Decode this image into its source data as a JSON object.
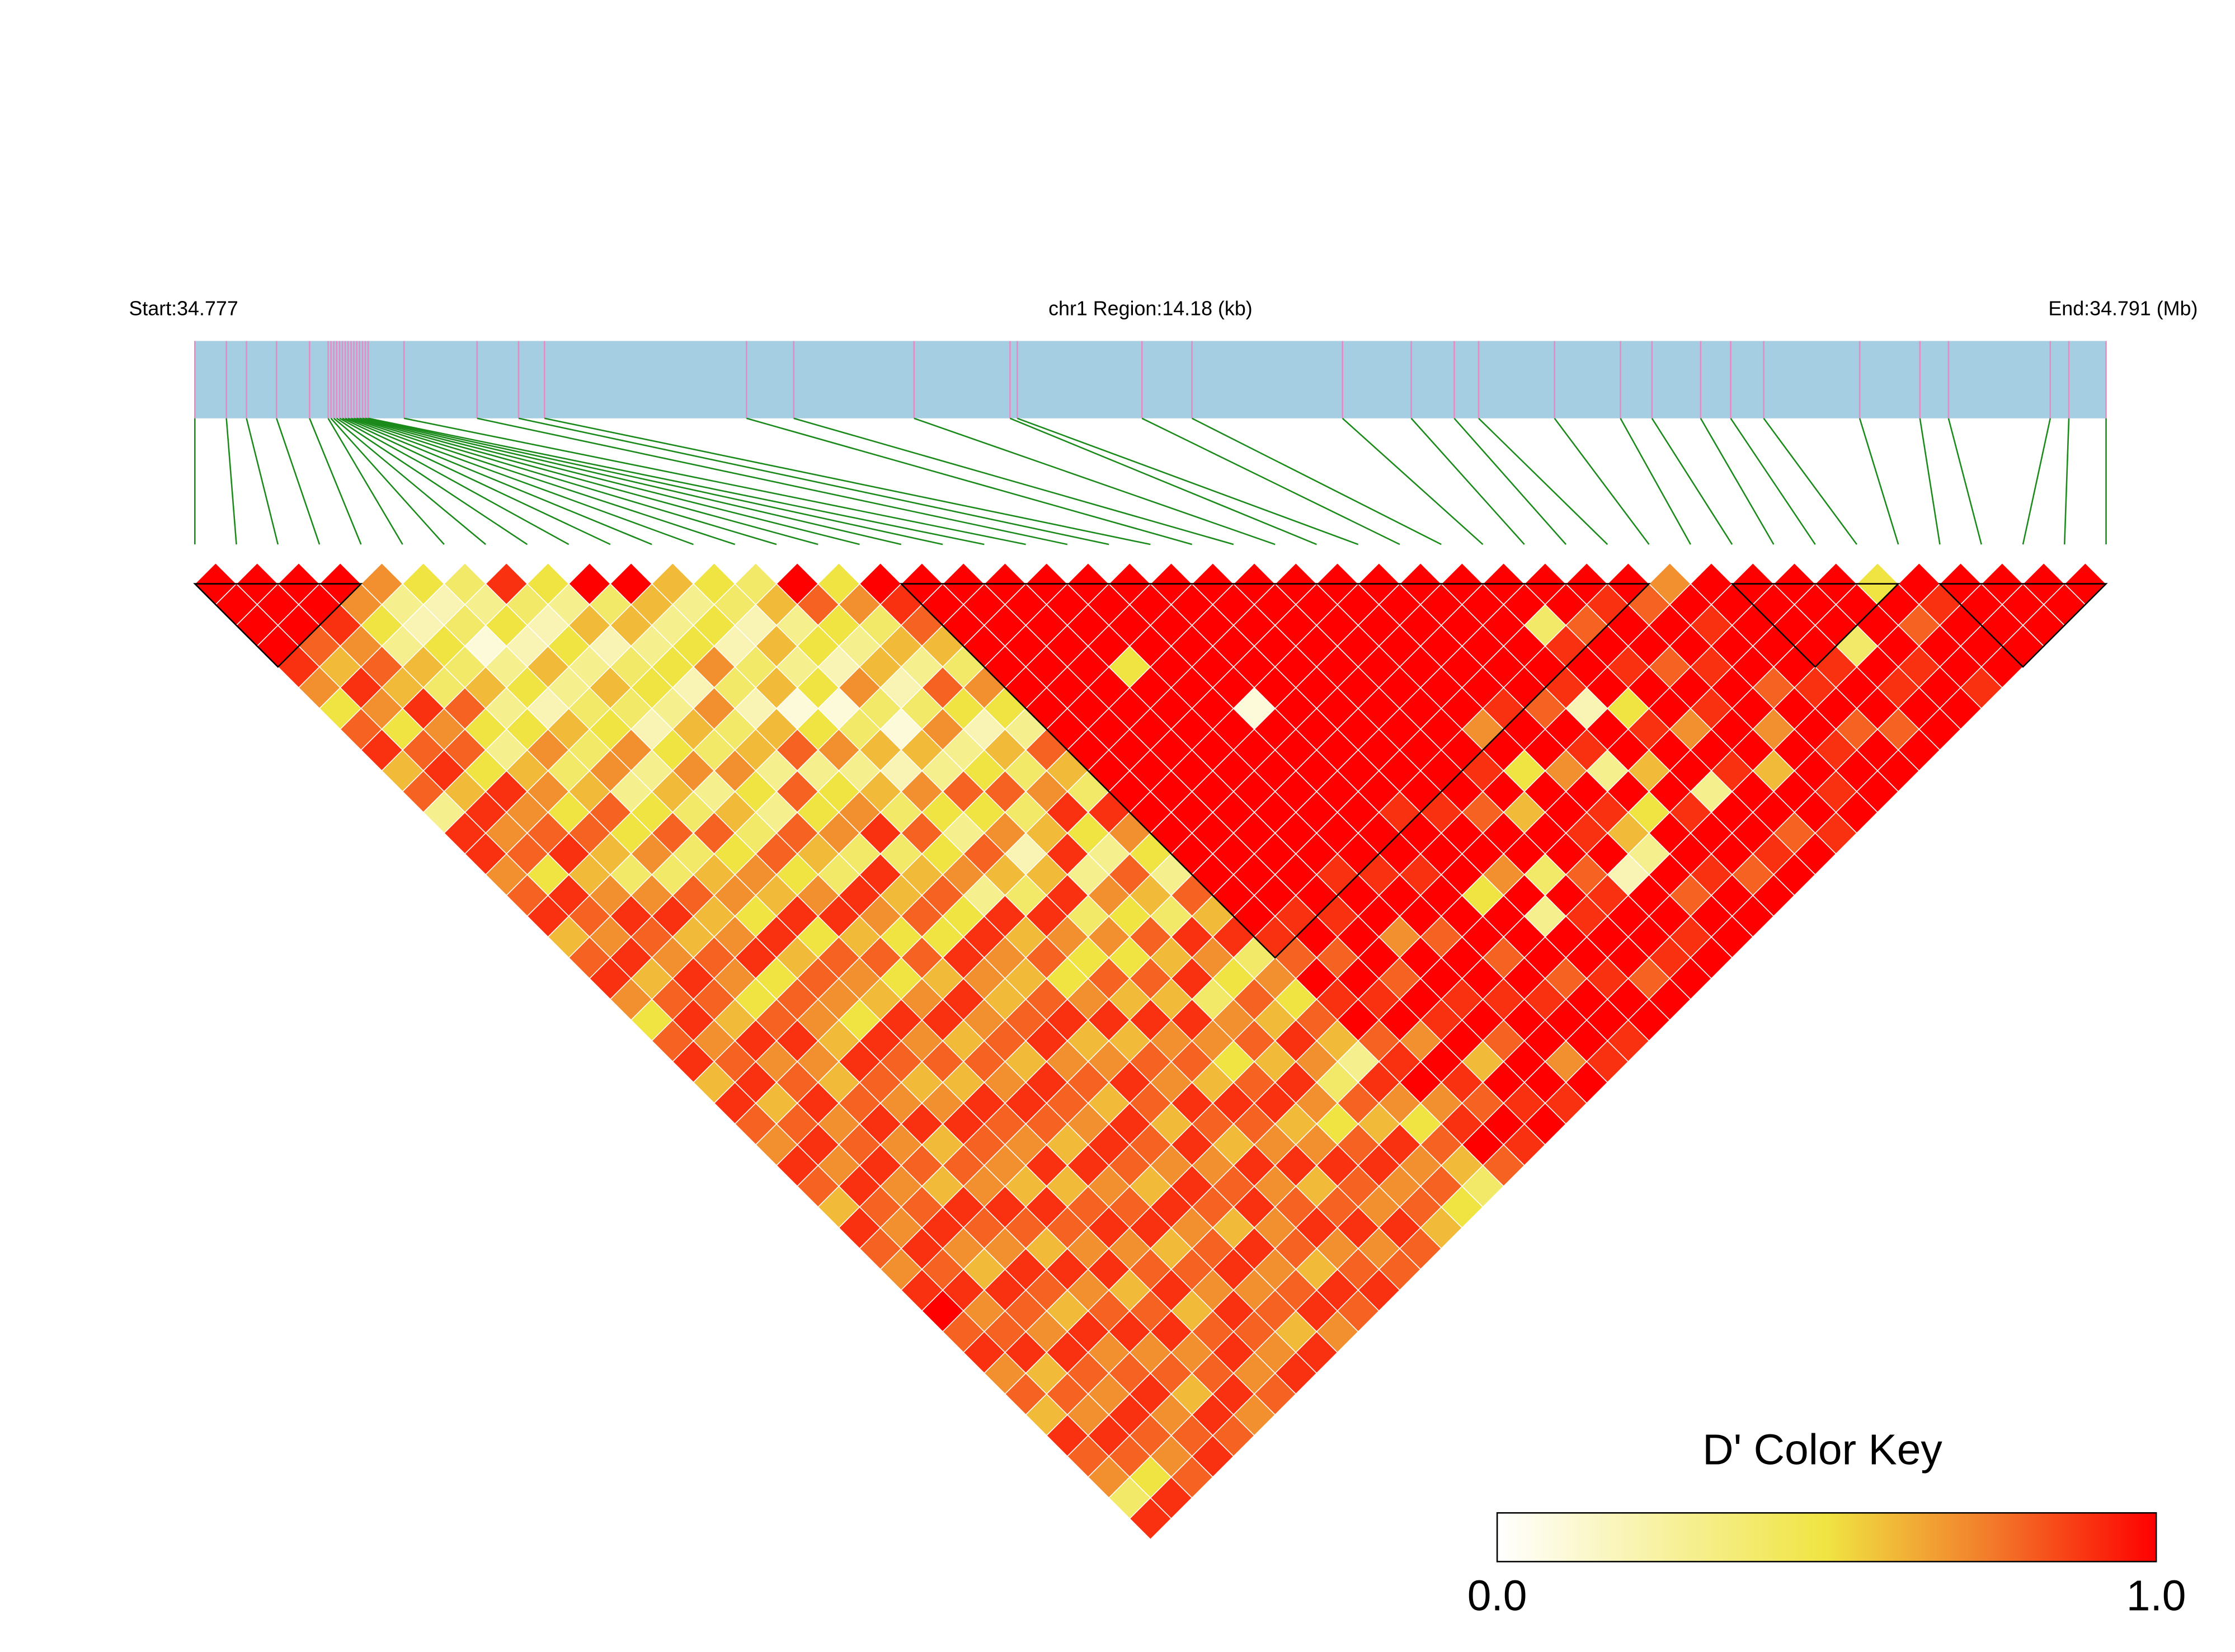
{
  "chart_data": {
    "type": "ld_heatmap",
    "start_label": "Start:34.777",
    "region_label": "chr1 Region:14.18 (kb)",
    "end_label": "End:34.791 (Mb)",
    "xlim": [
      0,
      14.18
    ],
    "x": [
      0,
      0.234,
      0.383,
      0.606,
      0.851,
      0.989,
      1.01,
      1.031,
      1.052,
      1.074,
      1.095,
      1.116,
      1.137,
      1.159,
      1.18,
      1.201,
      1.222,
      1.244,
      1.265,
      1.286,
      1.552,
      2.094,
      2.402,
      2.594,
      4.093,
      4.443,
      5.336,
      6.048,
      6.102,
      7.027,
      7.398,
      8.515,
      9.025,
      9.344,
      9.525,
      10.088,
      10.577,
      10.811,
      11.172,
      11.395,
      11.64,
      12.352,
      12.799,
      13.011,
      13.766,
      13.904,
      14.18
    ],
    "map_color": "#a6cee3",
    "snp_line_color": "#e78ac3",
    "connector_color": "#1a8a1a",
    "values": [
      [
        1,
        1,
        1,
        1,
        0.9,
        0.7,
        0.5,
        0.8,
        0.9,
        0.6,
        0.8,
        0.3,
        0.9,
        0.9,
        0.7,
        0.8,
        0.9,
        0.6,
        0.8,
        0.9,
        0.7,
        0.5,
        0.8,
        0.9,
        0.6,
        0.9,
        0.8,
        0.7,
        0.9,
        0.8,
        0.6,
        0.9,
        0.8,
        0.7,
        0.9,
        1,
        0.8,
        0.9,
        0.7,
        0.8,
        0.6,
        0.9,
        0.8,
        0.7,
        0.4,
        0.9
      ],
      [
        1,
        1,
        1,
        0.8,
        0.6,
        0.9,
        0.7,
        0.5,
        0.8,
        0.9,
        0.6,
        0.9,
        0.7,
        0.8,
        0.5,
        0.9,
        0.8,
        0.7,
        0.9,
        0.6,
        0.8,
        0.9,
        0.7,
        0.8,
        0.9,
        0.6,
        0.8,
        0.9,
        0.7,
        0.9,
        0.8,
        0.7,
        0.9,
        0.8,
        0.9,
        0.7,
        0.8,
        0.9,
        0.6,
        0.8,
        0.7,
        0.9,
        0.8,
        0.5,
        0.9
      ],
      [
        1,
        1,
        0.9,
        0.7,
        0.8,
        0.6,
        0.9,
        0.7,
        0.8,
        0.5,
        0.9,
        0.7,
        0.8,
        0.9,
        0.6,
        0.7,
        0.9,
        0.8,
        0.7,
        0.9,
        0.8,
        0.6,
        0.9,
        0.7,
        0.8,
        0.9,
        0.7,
        0.8,
        0.9,
        0.7,
        0.8,
        0.9,
        0.7,
        0.6,
        0.9,
        0.8,
        0.7,
        0.9,
        0.8,
        0.7,
        0.9,
        0.8,
        0.7,
        0.8
      ],
      [
        1,
        0.7,
        0.5,
        0.3,
        0.6,
        0.4,
        0.8,
        0.5,
        0.3,
        0.6,
        0.7,
        0.5,
        0.8,
        0.6,
        0.4,
        0.7,
        0.9,
        0.6,
        0.8,
        0.7,
        0.5,
        0.8,
        0.9,
        0.7,
        0.6,
        0.8,
        0.9,
        0.7,
        0.8,
        0.6,
        0.9,
        0.8,
        0.7,
        0.9,
        0.8,
        0.6,
        0.9,
        0.7,
        0.8,
        0.9,
        0.7,
        0.8,
        0.9
      ],
      [
        0.7,
        0.3,
        0.2,
        0.5,
        0.4,
        0.6,
        0.3,
        0.5,
        0.7,
        0.4,
        0.6,
        0.8,
        0.5,
        0.7,
        0.4,
        0.8,
        0.6,
        0.7,
        0.9,
        0.5,
        0.8,
        0.7,
        0.6,
        0.9,
        0.8,
        0.7,
        0.9,
        0.6,
        0.8,
        0.7,
        0.9,
        0.8,
        0.6,
        0.9,
        0.7,
        0.8,
        0.9,
        0.7,
        0.8,
        0.6,
        0.9,
        0.8
      ],
      [
        0.5,
        0.2,
        0.4,
        0.1,
        0.3,
        0.5,
        0.2,
        0.6,
        0.4,
        0.7,
        0.3,
        0.5,
        0.8,
        0.4,
        0.6,
        0.7,
        0.5,
        0.9,
        0.6,
        0.8,
        0.7,
        0.5,
        0.9,
        0.8,
        0.6,
        0.7,
        0.9,
        0.8,
        0.7,
        0.6,
        0.9,
        0.8,
        0.7,
        0.9,
        0.6,
        0.8,
        0.9,
        0.7,
        0.8,
        0.9,
        0.7
      ],
      [
        0.4,
        0.3,
        0.5,
        0.2,
        0.6,
        0.3,
        0.4,
        0.5,
        0.7,
        0.3,
        0.6,
        0.4,
        0.8,
        0.5,
        0.7,
        0.6,
        0.9,
        0.5,
        0.8,
        0.7,
        0.6,
        0.9,
        0.7,
        0.8,
        0.6,
        0.9,
        0.8,
        0.7,
        0.9,
        0.6,
        0.8,
        0.9,
        0.7,
        0.8,
        0.9,
        0.6,
        0.8,
        0.9,
        0.7,
        0.8
      ],
      [
        0.9,
        0.4,
        0.2,
        0.5,
        0.3,
        0.6,
        0.4,
        0.2,
        0.5,
        0.7,
        0.3,
        0.6,
        0.4,
        0.8,
        0.5,
        0.7,
        0.9,
        0.6,
        0.8,
        0.5,
        0.7,
        0.9,
        0.6,
        0.8,
        0.7,
        0.9,
        0.8,
        0.6,
        0.9,
        0.7,
        0.8,
        0.9,
        0.6,
        0.8,
        0.7,
        0.9,
        0.8,
        0.7,
        0.9
      ],
      [
        0.5,
        0.3,
        0.6,
        0.2,
        0.4,
        0.5,
        0.3,
        0.6,
        0.4,
        0.7,
        0.5,
        0.3,
        0.8,
        0.6,
        0.4,
        0.9,
        0.7,
        0.5,
        0.8,
        0.6,
        0.9,
        0.7,
        0.8,
        0.6,
        0.9,
        0.8,
        0.7,
        0.9,
        0.8,
        0.6,
        0.9,
        0.7,
        0.8,
        0.9,
        0.7,
        0.8,
        0.6,
        0.9
      ],
      [
        1,
        0.4,
        0.6,
        0.3,
        0.5,
        0.2,
        0.7,
        0.4,
        0.6,
        0.3,
        0.8,
        0.5,
        0.7,
        0.4,
        0.9,
        0.6,
        0.8,
        0.5,
        0.9,
        0.7,
        0.6,
        0.8,
        0.9,
        0.7,
        0.8,
        0.6,
        0.9,
        0.8,
        0.7,
        0.9,
        0.8,
        0.6,
        0.9,
        0.7,
        0.8,
        0.9,
        0.7
      ],
      [
        1,
        0.6,
        0.3,
        0.5,
        0.7,
        0.4,
        0.2,
        0.6,
        0.8,
        0.3,
        0.5,
        0.7,
        0.9,
        0.4,
        0.6,
        0.8,
        0.5,
        0.9,
        0.7,
        0.6,
        0.8,
        0.9,
        0.6,
        0.7,
        0.9,
        0.8,
        0.6,
        0.9,
        0.7,
        0.8,
        0.9,
        0.7,
        0.8,
        0.6,
        0.9,
        0.8
      ],
      [
        0.6,
        0.3,
        0.5,
        0.2,
        0.4,
        0.6,
        0.1,
        0.5,
        0.7,
        0.3,
        0.6,
        0.4,
        0.8,
        0.5,
        0.7,
        0.3,
        0.9,
        0.6,
        0.8,
        0.5,
        0.7,
        0.9,
        0.6,
        0.8,
        0.7,
        0.9,
        0.8,
        0.6,
        0.9,
        0.7,
        0.8,
        0.9,
        0.7,
        0.8,
        0.9
      ],
      [
        0.5,
        0.4,
        0.2,
        0.6,
        0.3,
        0.5,
        0.1,
        0.4,
        0.6,
        0.2,
        0.7,
        0.5,
        0.3,
        0.8,
        0.6,
        0.4,
        0.9,
        0.7,
        0.5,
        0.8,
        0.6,
        0.9,
        0.7,
        0.8,
        0.6,
        0.9,
        0.8,
        0.7,
        0.9,
        0.6,
        0.8,
        0.9,
        0.7,
        0.8
      ],
      [
        0.4,
        0.6,
        0.3,
        0.5,
        0.2,
        0.7,
        0.4,
        0.1,
        0.6,
        0.3,
        0.8,
        0.5,
        0.7,
        0.2,
        0.6,
        0.9,
        0.4,
        0.7,
        0.5,
        0.8,
        0.6,
        0.9,
        0.7,
        0.5,
        0.8,
        0.9,
        0.6,
        0.7,
        0.9,
        0.8,
        0.7,
        0.9,
        0.8
      ],
      [
        1,
        0.8,
        0.5,
        0.3,
        0.6,
        0.2,
        0.4,
        0.7,
        0.3,
        0.5,
        0.8,
        0.4,
        0.6,
        0.9,
        0.3,
        0.7,
        0.5,
        0.8,
        0.6,
        0.9,
        0.4,
        0.7,
        0.8,
        0.6,
        0.9,
        0.7,
        0.5,
        0.8,
        0.9,
        0.7,
        0.8,
        0.6
      ],
      [
        0.5,
        0.7,
        0.4,
        0.6,
        0.3,
        0.8,
        0.5,
        0.2,
        0.6,
        0.4,
        0.7,
        0.9,
        0.5,
        0.3,
        0.8,
        0.6,
        0.4,
        0.9,
        0.7,
        0.5,
        0.8,
        0.6,
        0.9,
        0.7,
        0.4,
        0.8,
        0.6,
        0.9,
        0.7,
        0.8,
        0.5
      ],
      [
        1,
        0.9,
        0.8,
        0.6,
        0.4,
        0.7,
        0.5,
        0.3,
        0.8,
        0.6,
        0.4,
        0.9,
        0.7,
        0.5,
        0.3,
        0.8,
        0.6,
        0.9,
        0.4,
        0.7,
        0.5,
        0.8,
        0.6,
        0.3,
        0.9,
        0.7,
        0.5,
        0.8,
        0.6,
        0.4
      ],
      [
        1,
        1,
        1,
        1,
        1,
        1,
        1,
        1,
        1,
        1,
        1,
        1,
        1,
        1,
        1,
        1,
        1,
        0.9,
        0.8,
        1,
        0.9,
        1,
        0.8,
        0.9,
        1,
        0.7,
        0.9,
        1,
        0.8
      ],
      [
        1,
        1,
        1,
        1,
        1,
        1,
        1,
        1,
        1,
        1,
        1,
        1,
        1,
        1,
        1,
        1,
        0.9,
        1,
        0.8,
        1,
        0.9,
        1,
        0.7,
        1,
        0.9,
        0.8,
        1,
        0.9
      ],
      [
        1,
        1,
        1,
        1,
        1,
        1,
        1,
        1,
        1,
        1,
        1,
        1,
        1,
        1,
        1,
        1,
        0.9,
        1,
        1,
        0.8,
        1,
        0.9,
        1,
        0.6,
        1,
        0.9,
        1
      ],
      [
        1,
        1,
        1,
        1,
        0.5,
        1,
        1,
        1,
        1,
        1,
        1,
        1,
        1,
        1,
        0.9,
        1,
        1,
        0.7,
        1,
        1,
        0.9,
        1,
        0.8,
        1,
        1,
        0.9
      ],
      [
        1,
        1,
        1,
        1,
        1,
        1,
        1,
        1,
        1,
        1,
        1,
        1,
        1,
        1,
        0.9,
        1,
        1,
        0.8,
        1,
        1,
        0.9,
        1,
        1,
        0.7,
        1
      ],
      [
        1,
        1,
        1,
        1,
        1,
        1,
        0.1,
        1,
        1,
        1,
        1,
        1,
        1,
        1,
        0.9,
        1,
        1,
        1,
        0.8,
        1,
        0.9,
        1,
        1,
        0.9
      ],
      [
        1,
        1,
        1,
        1,
        1,
        1,
        1,
        1,
        1,
        1,
        1,
        0.9,
        1,
        1,
        1,
        0.5,
        1,
        1,
        1,
        0.8,
        1,
        1,
        0.9
      ],
      [
        1,
        1,
        1,
        1,
        1,
        1,
        1,
        1,
        1,
        1,
        1,
        0.9,
        1,
        1,
        0.7,
        1,
        0.3,
        1,
        1,
        0.9,
        1,
        1
      ],
      [
        1,
        1,
        1,
        1,
        1,
        1,
        1,
        1,
        1,
        1,
        1,
        0.8,
        1,
        1,
        0.4,
        1,
        0.9,
        1,
        1,
        0.8,
        1
      ],
      [
        1,
        1,
        1,
        1,
        1,
        1,
        1,
        1,
        1,
        0.9,
        1,
        0.6,
        1,
        1,
        0.8,
        0.9,
        1,
        1,
        0.9,
        1
      ],
      [
        1,
        1,
        1,
        1,
        1,
        1,
        1,
        0.7,
        1,
        0.5,
        1,
        1,
        0.9,
        1,
        0.2,
        1,
        1,
        0.9,
        1
      ],
      [
        1,
        1,
        1,
        1,
        1,
        1,
        0.9,
        1,
        1,
        0.7,
        1,
        0.9,
        0.6,
        0.3,
        1,
        0.8,
        1,
        1
      ],
      [
        1,
        1,
        1,
        1,
        1,
        1,
        0.8,
        1,
        0.9,
        0.3,
        1,
        0.5,
        1,
        1,
        0.9,
        1,
        1
      ],
      [
        1,
        1,
        1,
        1,
        1,
        0.9,
        0.2,
        1,
        1,
        0.6,
        1,
        0.9,
        1,
        1,
        0.8,
        1
      ],
      [
        1,
        1,
        0.4,
        0.9,
        1,
        1,
        0.5,
        0.9,
        1,
        1,
        0.3,
        1,
        1,
        0.9,
        1
      ],
      [
        1,
        1,
        0.8,
        1,
        0.9,
        1,
        1,
        0.7,
        1,
        0.9,
        1,
        1,
        0.8,
        1
      ],
      [
        1,
        0.9,
        1,
        1,
        0.8,
        1,
        0.9,
        1,
        1,
        0.6,
        1,
        1,
        0.9
      ],
      [
        1,
        0.8,
        1,
        1,
        0.9,
        1,
        1,
        0.7,
        1,
        1,
        0.9,
        1
      ],
      [
        0.7,
        1,
        0.9,
        1,
        1,
        0.8,
        1,
        1,
        0.9,
        1,
        1
      ],
      [
        1,
        1,
        1,
        1,
        1,
        0.9,
        1,
        0.8,
        1,
        1
      ],
      [
        1,
        1,
        1,
        1,
        0.9,
        1,
        1,
        0.8,
        1
      ],
      [
        1,
        1,
        1,
        0.4,
        1,
        0.9,
        1,
        1
      ],
      [
        1,
        1,
        1,
        1,
        0.9,
        1,
        1
      ],
      [
        0.5,
        1,
        0.8,
        1,
        1,
        0.9
      ],
      [
        1,
        0.9,
        1,
        1,
        1
      ],
      [
        1,
        1,
        1,
        1
      ],
      [
        1,
        1,
        1
      ],
      [
        1,
        1
      ],
      [
        1
      ]
    ],
    "blocks": [
      [
        0,
        4
      ],
      [
        17,
        35
      ],
      [
        37,
        41
      ],
      [
        42,
        46
      ]
    ],
    "colormap": [
      {
        "value": 0,
        "color": "#ffffff"
      },
      {
        "value": 0.5,
        "color": "#f0e442"
      },
      {
        "value": 0.75,
        "color": "#f27a2a"
      },
      {
        "value": 1,
        "color": "#ff0000"
      }
    ],
    "legend_title": "D' Color Key",
    "legend_lim": [
      0,
      1
    ],
    "legend_ticks": [
      {
        "value": 0,
        "label": "0.0"
      },
      {
        "value": 1,
        "label": "1.0"
      }
    ]
  }
}
